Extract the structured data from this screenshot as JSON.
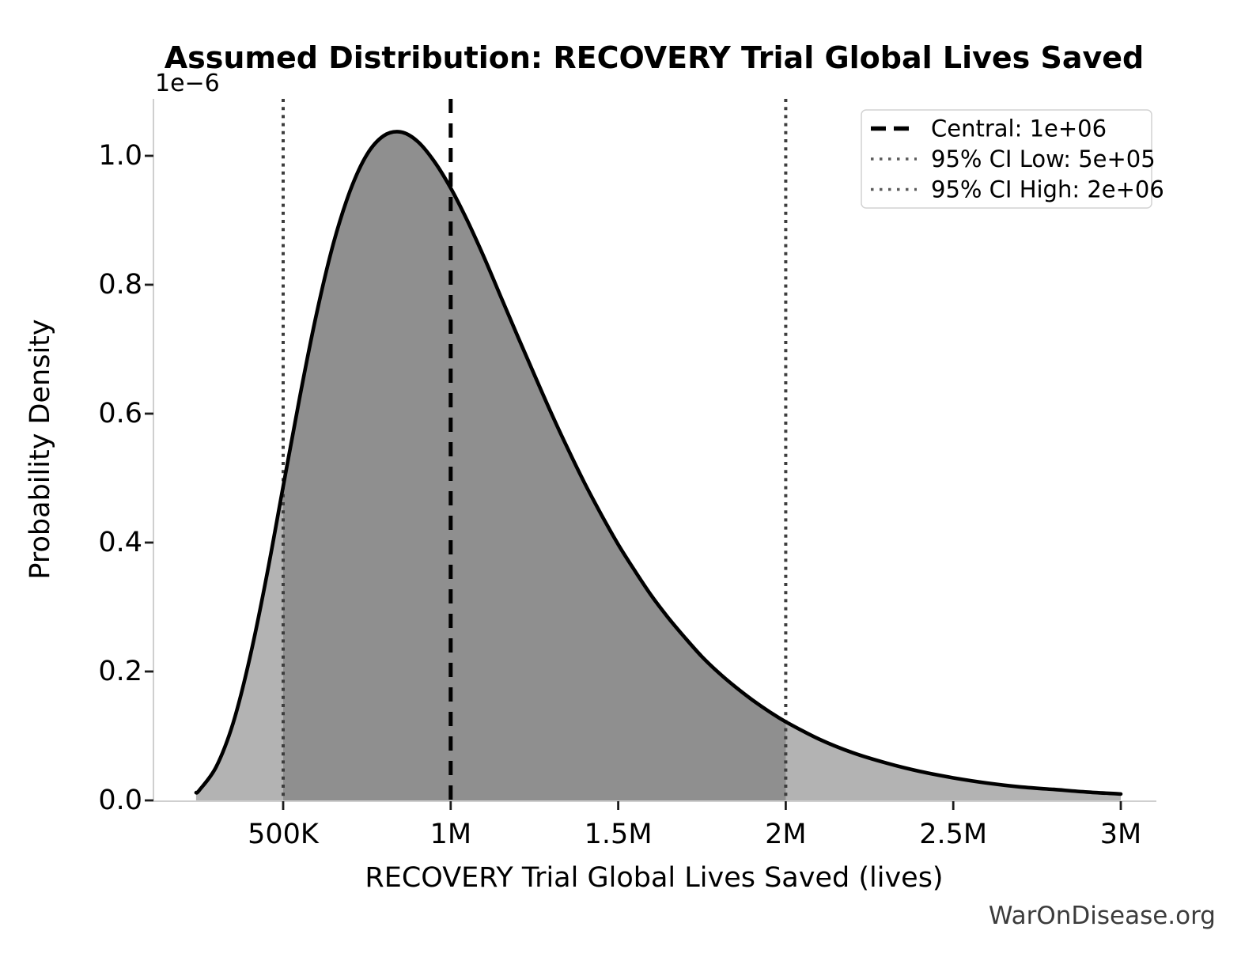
{
  "title": "Assumed Distribution: RECOVERY Trial Global Lives Saved",
  "watermark": "WarOnDisease.org",
  "axes": {
    "x_label": "RECOVERY Trial Global Lives Saved (lives)",
    "y_label": "Probability Density",
    "offset_text": "1e−6",
    "x_tick_labels": [
      "500K",
      "1M",
      "1.5M",
      "2M",
      "2.5M",
      "3M"
    ],
    "x_tick_values_millions": [
      0.5,
      1,
      1.5,
      2,
      2.5,
      3
    ],
    "y_tick_labels": [
      "0.0",
      "0.2",
      "0.4",
      "0.6",
      "0.8",
      "1.0"
    ],
    "y_tick_values": [
      0,
      0.2,
      0.4,
      0.6,
      0.8,
      1.0
    ]
  },
  "legend": {
    "items": [
      {
        "label": "Central: 1e+06",
        "style": "dashed",
        "color": "#000000"
      },
      {
        "label": "95% CI Low: 5e+05",
        "style": "dotted",
        "color": "#5a5a5a"
      },
      {
        "label": "95% CI High: 2e+06",
        "style": "dotted",
        "color": "#5a5a5a"
      }
    ]
  },
  "chart_data": {
    "type": "area",
    "title": "Assumed Distribution: RECOVERY Trial Global Lives Saved",
    "xlabel": "RECOVERY Trial Global Lives Saved (lives)",
    "ylabel": "Probability Density",
    "x_units": "lives, millions",
    "y_units": "probability density × 1e−6",
    "xlim_millions": [
      0.11,
      3.08
    ],
    "ylim_1e_minus_6": [
      0,
      1.088
    ],
    "central_millions": 1.0,
    "ci_low_millions": 0.5,
    "ci_high_millions": 2.0,
    "legend_position": "upper right",
    "grid": false,
    "x_millions": [
      0.24,
      0.25,
      0.3,
      0.35,
      0.4,
      0.45,
      0.5,
      0.55,
      0.6,
      0.65,
      0.7,
      0.75,
      0.8,
      0.85,
      0.9,
      0.95,
      1.0,
      1.05,
      1.1,
      1.15,
      1.2,
      1.25,
      1.3,
      1.35,
      1.4,
      1.45,
      1.5,
      1.55,
      1.6,
      1.65,
      1.7,
      1.75,
      1.8,
      1.85,
      1.9,
      1.95,
      2.0,
      2.1,
      2.2,
      2.3,
      2.4,
      2.5,
      2.6,
      2.7,
      2.8,
      2.9,
      3.0
    ],
    "density_1e_minus_6": [
      0.012,
      0.016,
      0.052,
      0.119,
      0.22,
      0.346,
      0.487,
      0.627,
      0.756,
      0.864,
      0.946,
      1.002,
      1.031,
      1.037,
      1.023,
      0.992,
      0.95,
      0.899,
      0.842,
      0.781,
      0.72,
      0.66,
      0.601,
      0.545,
      0.492,
      0.443,
      0.397,
      0.356,
      0.317,
      0.283,
      0.252,
      0.223,
      0.198,
      0.176,
      0.156,
      0.138,
      0.122,
      0.095,
      0.074,
      0.058,
      0.045,
      0.035,
      0.027,
      0.021,
      0.017,
      0.013,
      0.01
    ]
  },
  "colors": {
    "background": "#ffffff",
    "fill_outer": "#b3b3b3",
    "fill_inner": "#8f8f8f",
    "curve": "#000000",
    "central_line": "#000000",
    "ci_line": "#3d3d3d",
    "spine": "#cfcfcf",
    "tick": "#1c1c1c",
    "text": "#000000",
    "legend_border": "#d2d2d2",
    "legend_bg": "#ffffff",
    "watermark": "#3c3c3c"
  }
}
